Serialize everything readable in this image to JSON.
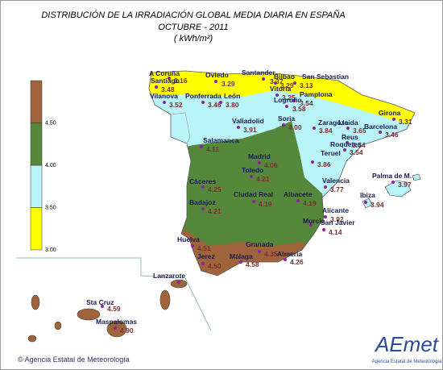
{
  "header": {
    "title": [
      "DISTRIBUCIÓN DE LA IRRADIACIÓN GLOBAL MEDIA DIARIA EN  ESPAÑA",
      "OCTUBRE - 2011",
      "( kWh/m²)"
    ]
  },
  "legend": {
    "ticks": [
      {
        "value": 3,
        "label": "3.00"
      },
      {
        "value": 3.5,
        "label": "3.50"
      },
      {
        "value": 4,
        "label": "4.00"
      },
      {
        "value": 4.5,
        "label": "4.50"
      }
    ],
    "colors": [
      "#ffff00",
      "#b8f4f8",
      "#55883a",
      "#a0643c"
    ]
  },
  "stations": [
    {
      "name": "A Coruña",
      "value": "3.16"
    },
    {
      "name": "Santiago",
      "value": "3.48"
    },
    {
      "name": "Oviedo",
      "value": "3.29"
    },
    {
      "name": "Santander",
      "value": "3.37"
    },
    {
      "name": "Bilbao",
      "value": "3.29"
    },
    {
      "name": "San Sebastian",
      "value": "3.13"
    },
    {
      "name": "Vilanova",
      "value": "3.52"
    },
    {
      "name": "Ponferrada",
      "value": "3.46"
    },
    {
      "name": "León",
      "value": "3.80"
    },
    {
      "name": "Vitoria",
      "value": "3.25"
    },
    {
      "name": "Pamplona",
      "value": "3.54"
    },
    {
      "name": "Logroño",
      "value": "3.58"
    },
    {
      "name": "Girona",
      "value": "3.31"
    },
    {
      "name": "Valladolid",
      "value": "3.91"
    },
    {
      "name": "Soria",
      "value": "4.00"
    },
    {
      "name": "Zaragoza",
      "value": "3.84"
    },
    {
      "name": "Lleida",
      "value": "3.65"
    },
    {
      "name": "Barcelona",
      "value": "3.46"
    },
    {
      "name": "Reus",
      "value": "3.54"
    },
    {
      "name": "Roquetes",
      "value": "3.54"
    },
    {
      "name": "Salamanca",
      "value": "4.11"
    },
    {
      "name": "Madrid",
      "value": "4.06"
    },
    {
      "name": "Teruel",
      "value": "3.86"
    },
    {
      "name": "Toledo",
      "value": "4.21"
    },
    {
      "name": "Cáceres",
      "value": "4.25"
    },
    {
      "name": "Ciudad Real",
      "value": "4.19"
    },
    {
      "name": "Albacete",
      "value": "4.19"
    },
    {
      "name": "Valencia",
      "value": "3.77"
    },
    {
      "name": "Palma de M.",
      "value": "3.97"
    },
    {
      "name": "Ibiza",
      "value": "3.94"
    },
    {
      "name": "Badajoz",
      "value": "4.21"
    },
    {
      "name": "Alicante",
      "value": "3.92"
    },
    {
      "name": "Murcia"
    },
    {
      "name": "San Javier",
      "value": "4.14"
    },
    {
      "name": "Huelva",
      "value": "4.51"
    },
    {
      "name": "Granada",
      "value": "4.35"
    },
    {
      "name": "Jerez",
      "value": "4.50"
    },
    {
      "name": "Málaga",
      "value": "4.58"
    },
    {
      "name": "Almería",
      "value": "4.26"
    },
    {
      "name": "Lanzarote"
    },
    {
      "name": "Sta Cruz",
      "value": "4.59"
    },
    {
      "name": "Maspalomas",
      "value": "4.90"
    }
  ],
  "footer": {
    "copyright": "© Agencia Estatal de Meteorología",
    "logo": "AEmet",
    "logo_caption": "Agencia Estatal de Meteorología"
  }
}
